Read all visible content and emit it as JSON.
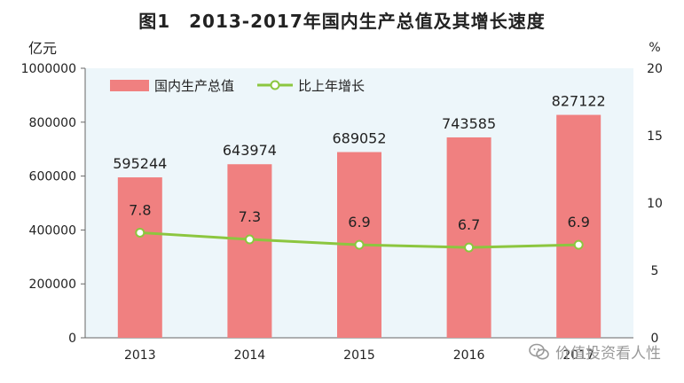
{
  "chart_data": {
    "type": "bar+line",
    "title": "图1　2013-2017年国内生产总值及其增长速度",
    "categories": [
      "2013",
      "2014",
      "2015",
      "2016",
      "2017"
    ],
    "x": [
      "2013",
      "2014",
      "2015",
      "2016",
      "2017"
    ],
    "series": [
      {
        "name": "国内生产总值",
        "type": "bar",
        "axis": "left",
        "values": [
          595244,
          643974,
          689052,
          743585,
          827122
        ],
        "labels": [
          "595244",
          "643974",
          "689052",
          "743585",
          "827122"
        ]
      },
      {
        "name": "比上年增长",
        "type": "line",
        "axis": "right",
        "values": [
          7.8,
          7.3,
          6.9,
          6.7,
          6.9
        ],
        "labels": [
          "7.8",
          "7.3",
          "6.9",
          "6.7",
          "6.9"
        ]
      }
    ],
    "left_axis": {
      "unit": "亿元",
      "ylim": [
        0,
        1000000
      ],
      "ticks": [
        0,
        200000,
        400000,
        600000,
        800000,
        1000000
      ],
      "tick_labels": [
        "0",
        "200000",
        "400000",
        "600000",
        "800000",
        "1000000"
      ]
    },
    "right_axis": {
      "unit": "%",
      "ylim": [
        0,
        20
      ],
      "ticks": [
        0,
        5,
        10,
        15,
        20
      ],
      "tick_labels": [
        "0",
        "5",
        "10",
        "15",
        "20"
      ]
    },
    "legend_position": "top-left",
    "grid": false,
    "colors": {
      "bar": "#f08080",
      "line": "#8cc63f",
      "plot_bg": "#edf6fa"
    }
  },
  "watermark": {
    "text": "价值投资看人性",
    "icon": "wechat-icon"
  }
}
